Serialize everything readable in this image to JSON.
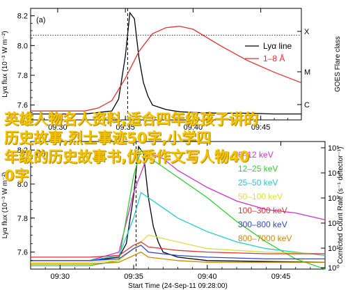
{
  "chart_data": [
    {
      "type": "line",
      "panel_label": "(a)",
      "ylabel": "Lyα flux (10⁻³ W m⁻²)",
      "ylabel_right": "GOES Flare class",
      "xlabel": "",
      "xlim": [
        "09:28",
        "09:48"
      ],
      "ylim": [
        7.5,
        8.25
      ],
      "x_ticks": [
        "09:30",
        "09:35",
        "09:40",
        "09:45"
      ],
      "y_ticks": [
        7.6,
        7.8,
        8.0,
        8.2
      ],
      "right_ticks": [
        "X",
        "M",
        "C"
      ],
      "reference_line": 8.07,
      "vertical_marker": "09:35:10",
      "series": [
        {
          "name": "Lyα line",
          "color": "#000000",
          "x": [
            "09:28",
            "09:32",
            "09:34",
            "09:34:30",
            "09:35",
            "09:35:20",
            "09:35:40",
            "09:36",
            "09:36:20",
            "09:36:40",
            "09:37",
            "09:38",
            "09:39",
            "09:40",
            "09:42",
            "09:44",
            "09:46",
            "09:48"
          ],
          "values": [
            7.54,
            7.54,
            7.56,
            7.64,
            7.93,
            8.22,
            8.18,
            7.92,
            7.75,
            7.66,
            7.6,
            7.57,
            7.555,
            7.55,
            7.545,
            7.545,
            7.54,
            7.54
          ]
        },
        {
          "name": "1–8 Å",
          "color": "#e23030",
          "x": [
            "09:28",
            "09:32",
            "09:33",
            "09:34",
            "09:35",
            "09:36",
            "09:37",
            "09:38",
            "09:39",
            "09:40",
            "09:42",
            "09:44",
            "09:46",
            "09:48"
          ],
          "values": [
            7.56,
            7.56,
            7.58,
            7.63,
            7.78,
            7.96,
            8.08,
            8.12,
            8.13,
            8.11,
            8.0,
            7.9,
            7.82,
            7.75
          ]
        }
      ]
    },
    {
      "type": "line",
      "panel_label": "(b)",
      "ylabel": "Lyα flux (10⁻³ W m⁻²)",
      "ylabel_right": "Corrected Count Rate (s⁻¹ detector⁻¹)",
      "xlabel": "Start Time (24-Sep-11 09:28:00)",
      "xlim": [
        "09:28",
        "09:48"
      ],
      "ylim": [
        7.5,
        8.25
      ],
      "x_ticks": [
        "09:30",
        "09:35",
        "09:40",
        "09:45"
      ],
      "y_ticks": [
        7.6,
        7.8,
        8.0,
        8.2
      ],
      "right_ticks": [
        "10⁵",
        "10⁴",
        "10³",
        "10²",
        "10¹",
        "10⁰"
      ],
      "vertical_marker": "09:35:10",
      "series": [
        {
          "name": "Lyα",
          "color": "#000000",
          "x": [
            "09:28",
            "09:32",
            "09:34",
            "09:34:30",
            "09:35",
            "09:35:20",
            "09:35:40",
            "09:36",
            "09:36:20",
            "09:36:40",
            "09:37",
            "09:38",
            "09:40",
            "09:44",
            "09:48"
          ],
          "values": [
            7.55,
            7.55,
            7.57,
            7.65,
            7.93,
            8.22,
            8.18,
            7.92,
            7.75,
            7.66,
            7.6,
            7.57,
            7.55,
            7.545,
            7.54
          ]
        },
        {
          "name": "6–12 keV",
          "color": "#cc33cc",
          "x": [
            "09:28",
            "09:32",
            "09:34",
            "09:35",
            "09:36",
            "09:37",
            "09:38",
            "09:40",
            "09:42",
            "09:44",
            "09:46",
            "09:48"
          ],
          "values": [
            7.55,
            7.55,
            7.6,
            7.95,
            8.18,
            8.15,
            8.08,
            7.98,
            7.9,
            7.85,
            7.83,
            7.79
          ]
        },
        {
          "name": "12–25 keV",
          "color": "#33cc33",
          "x": [
            "09:28",
            "09:32",
            "09:34",
            "09:35",
            "09:35:30",
            "09:36",
            "09:37",
            "09:38",
            "09:40",
            "09:42",
            "09:44",
            "09:46",
            "09:48"
          ],
          "values": [
            7.52,
            7.52,
            7.55,
            8.05,
            8.2,
            8.16,
            8.1,
            8.04,
            7.92,
            7.78,
            7.66,
            7.56,
            7.5
          ]
        },
        {
          "name": "25–50 keV",
          "color": "#22cccc",
          "x": [
            "09:28",
            "09:32",
            "09:34",
            "09:35",
            "09:35:30",
            "09:36",
            "09:37",
            "09:38",
            "09:40",
            "09:42",
            "09:44",
            "09:46",
            "09:48"
          ],
          "values": [
            7.55,
            7.55,
            7.58,
            7.8,
            7.95,
            7.92,
            7.86,
            7.8,
            7.72,
            7.66,
            7.62,
            7.6,
            7.58
          ]
        },
        {
          "name": "50–100 keV",
          "color": "#dddd44",
          "x": [
            "09:28",
            "09:32",
            "09:34",
            "09:35",
            "09:36",
            "09:38",
            "09:40",
            "09:44",
            "09:48"
          ],
          "values": [
            7.54,
            7.54,
            7.55,
            7.62,
            7.7,
            7.66,
            7.62,
            7.6,
            7.59
          ]
        },
        {
          "name": "100–300 keV",
          "color": "#dd3333",
          "x": [
            "09:28",
            "09:32",
            "09:34",
            "09:35",
            "09:35:30",
            "09:36",
            "09:38",
            "09:40",
            "09:44",
            "09:48"
          ],
          "values": [
            7.57,
            7.57,
            7.58,
            7.64,
            7.66,
            7.63,
            7.61,
            7.6,
            7.59,
            7.59
          ]
        },
        {
          "name": "300–800 keV",
          "color": "#3344cc",
          "x": [
            "09:28",
            "09:32",
            "09:34",
            "09:35",
            "09:35:30",
            "09:36",
            "09:38",
            "09:40",
            "09:44",
            "09:48"
          ],
          "values": [
            7.55,
            7.55,
            7.56,
            7.62,
            7.64,
            7.6,
            7.58,
            7.57,
            7.56,
            7.56
          ]
        },
        {
          "name": "800–7000 keV",
          "color": "#cc8800",
          "x": [
            "09:28",
            "09:32",
            "09:34",
            "09:35",
            "09:35:30",
            "09:36",
            "09:38",
            "09:40",
            "09:44",
            "09:48"
          ],
          "values": [
            7.53,
            7.53,
            7.54,
            7.58,
            7.6,
            7.57,
            7.55,
            7.54,
            7.54,
            7.54
          ]
        }
      ]
    }
  ],
  "overlay_text": {
    "line1": "英雄人物名人资料,适合四年级孩子讲的",
    "line2": "历史故事,烈士事迹50字,小学四",
    "line3": "年级的历史故事书,优秀作文写人物40",
    "line4": "0字"
  }
}
